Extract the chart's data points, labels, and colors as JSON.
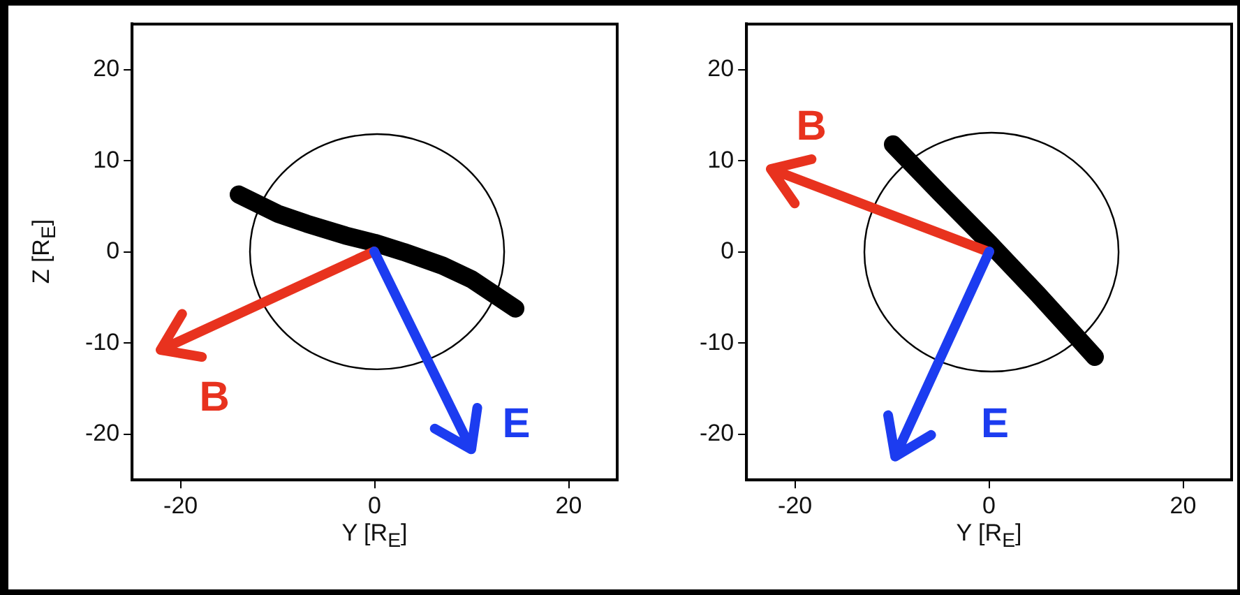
{
  "chart_data": [
    {
      "type": "line",
      "xlabel": "Y [R$_{E}$]",
      "ylabel": "Z [R$_{E}$]",
      "xlim": [
        -25,
        25
      ],
      "ylim": [
        -25,
        25
      ],
      "xticks": [
        -20,
        0,
        20
      ],
      "yticks": [
        -20,
        -10,
        0,
        10,
        20
      ],
      "series": [
        {
          "color": "#000000",
          "x": [
            -14,
            -10,
            -7,
            -3,
            0,
            3,
            7,
            10,
            14.5
          ],
          "values": [
            6.3,
            4.2,
            3.1,
            1.8,
            1,
            0,
            -1.5,
            -3,
            -6.2
          ]
        }
      ],
      "annotations": [
        "B",
        "E"
      ]
    },
    {
      "type": "line",
      "xlabel": "Y [R$_{E}$]",
      "xlim": [
        -25,
        25
      ],
      "ylim": [
        -25,
        25
      ],
      "xticks": [
        -20,
        0,
        20
      ],
      "yticks": [
        -20,
        -10,
        0,
        10,
        20
      ],
      "series": [
        {
          "color": "#000000",
          "x": [
            -9.9,
            -5,
            0,
            5,
            10.9
          ],
          "values": [
            11.8,
            6.4,
            1,
            -4.6,
            -11.5
          ]
        }
      ],
      "annotations": [
        "B",
        "E"
      ]
    }
  ]
}
